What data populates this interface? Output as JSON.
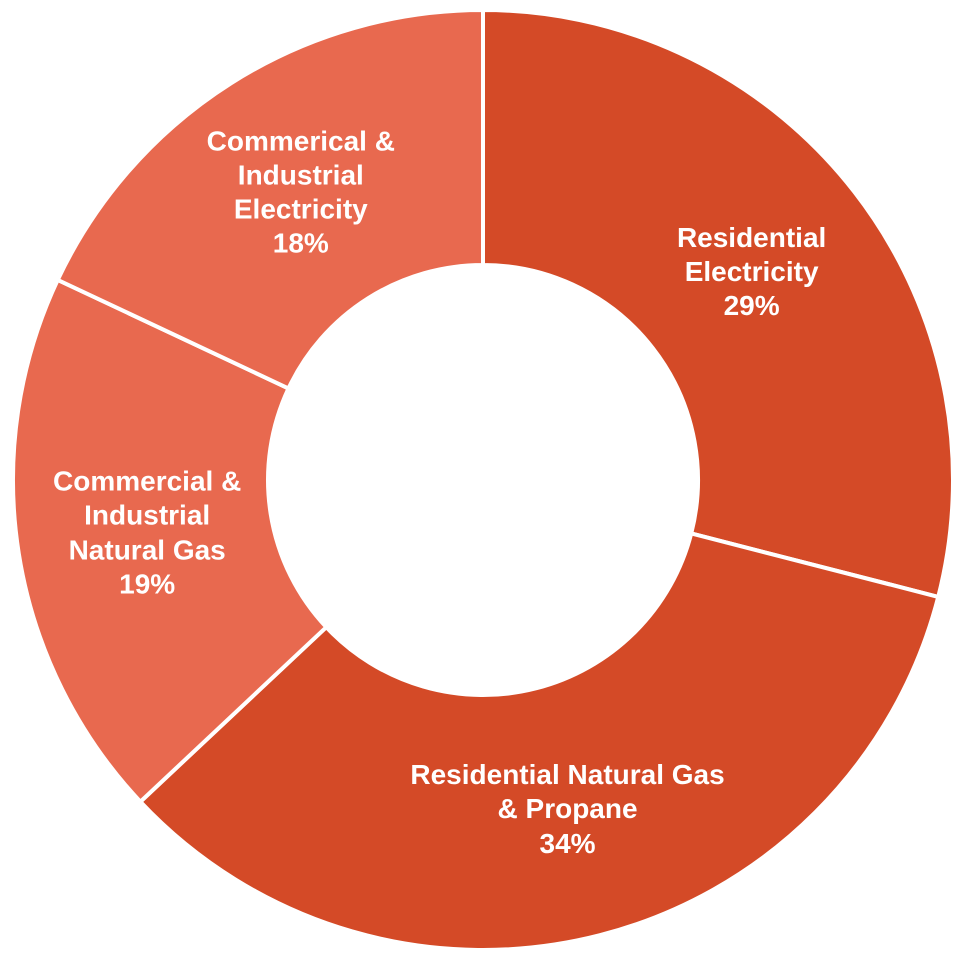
{
  "chart_data": {
    "type": "donut",
    "categories": [
      "Residential Electricity",
      "Residential Natural Gas & Propane",
      "Commercial & Industrial Natural Gas",
      "Commerical & Industrial Electricity"
    ],
    "values": [
      29,
      34,
      19,
      18
    ],
    "value_labels": [
      "29%",
      "34%",
      "19%",
      "18%"
    ],
    "colors": [
      "#d44a27",
      "#d44a27",
      "#e8694f",
      "#e8694f"
    ]
  }
}
